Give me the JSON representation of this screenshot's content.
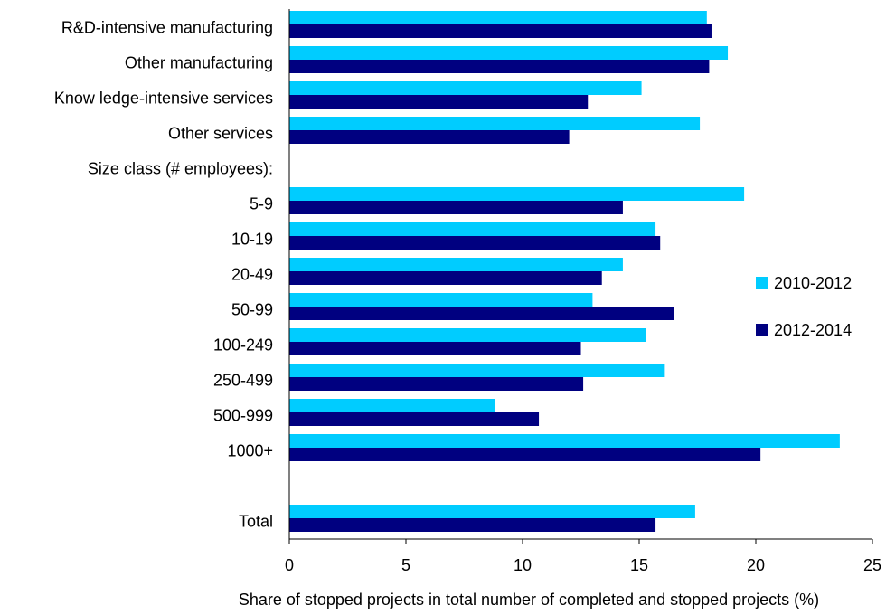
{
  "chart_data": {
    "type": "bar",
    "orientation": "horizontal",
    "categories": [
      "R&D-intensive manufacturing",
      "Other manufacturing",
      "Know ledge-intensive services",
      "Other services",
      "Size class (# employees):",
      "5-9",
      "10-19",
      "20-49",
      "50-99",
      "100-249",
      "250-499",
      "500-999",
      "1000+",
      "",
      "Total"
    ],
    "series": [
      {
        "name": "2010-2012",
        "color": "#00CCFF",
        "values": [
          17.9,
          18.8,
          15.1,
          17.6,
          null,
          19.5,
          15.7,
          14.3,
          13.0,
          15.3,
          16.1,
          8.8,
          23.6,
          null,
          17.4
        ]
      },
      {
        "name": "2012-2014",
        "color": "#000080",
        "values": [
          18.1,
          18.0,
          12.8,
          12.0,
          null,
          14.3,
          15.9,
          13.4,
          16.5,
          12.5,
          12.6,
          10.7,
          20.2,
          null,
          15.7
        ]
      }
    ],
    "xlabel": "Share of stopped projects in total number of completed and stopped projects (%)",
    "xlim": [
      0,
      25
    ],
    "xticks": [
      "0",
      "5",
      "10",
      "15",
      "20",
      "25"
    ],
    "grid": false,
    "legend_position": "right"
  }
}
